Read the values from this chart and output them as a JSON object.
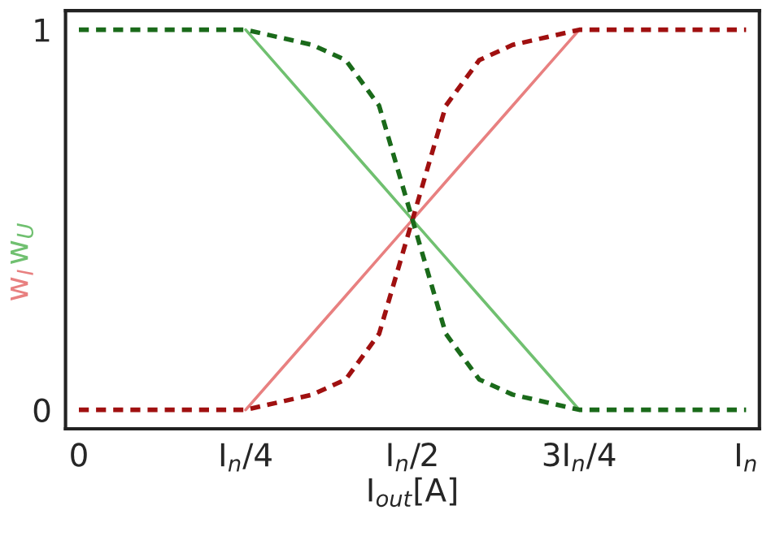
{
  "chart_data": {
    "type": "line",
    "xlabel": "I$_{out}$[A]",
    "ylabel": "w$_{I}$",
    "annotations": [
      "w$_{U}$"
    ],
    "categories": [
      "0",
      null,
      null,
      null,
      null,
      "I$_{n}$/4",
      null,
      null,
      null,
      null,
      "I$_{n}$/2",
      null,
      null,
      null,
      null,
      "3I$_{n}$/4",
      null,
      null,
      null,
      null,
      "I$_{n}$"
    ],
    "ylim": [
      -0.05,
      1.05
    ],
    "yticks": [
      0,
      1
    ],
    "grid": false,
    "series": [
      {
        "color": "#e88080",
        "line_style": "solid",
        "values": [
          null,
          null,
          null,
          null,
          null,
          0,
          0.1,
          0.2,
          0.3,
          0.4,
          0.5,
          0.6,
          0.7,
          0.8,
          0.9,
          1,
          null,
          null,
          null,
          null,
          null
        ]
      },
      {
        "color": "#70c070",
        "line_style": "solid",
        "values": [
          null,
          null,
          null,
          null,
          null,
          1,
          0.9,
          0.8,
          0.7,
          0.6,
          0.5,
          0.4,
          0.3,
          0.2,
          0.1,
          0,
          null,
          null,
          null,
          null,
          null
        ]
      },
      {
        "color": "#a01010",
        "line_style": "dashed",
        "values": [
          0,
          0,
          0,
          0,
          0,
          0,
          0.02,
          0.04,
          0.08,
          0.2,
          0.5,
          0.8,
          0.92,
          0.96,
          0.98,
          1,
          1,
          1,
          1,
          1,
          1
        ]
      },
      {
        "color": "#1a6a1a",
        "line_style": "dashed",
        "values": [
          1,
          1,
          1,
          1,
          1,
          1,
          0.98,
          0.96,
          0.92,
          0.8,
          0.5,
          0.2,
          0.08,
          0.04,
          0.02,
          0,
          0,
          0,
          0,
          0,
          0
        ]
      }
    ]
  }
}
